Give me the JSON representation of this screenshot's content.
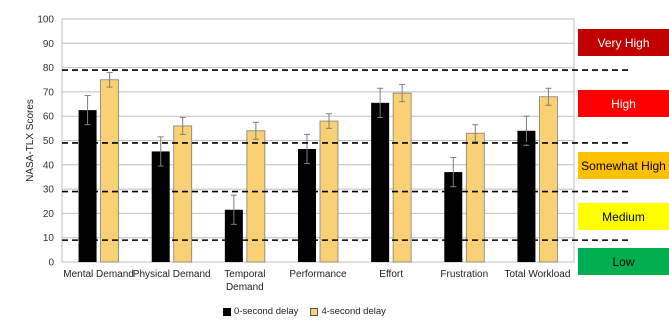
{
  "chart_data": {
    "type": "bar",
    "title": "",
    "xlabel": "",
    "ylabel": "NASA-TLX Scores",
    "ylim": [
      0,
      100
    ],
    "yticks": [
      0,
      10,
      20,
      30,
      40,
      50,
      60,
      70,
      80,
      90,
      100
    ],
    "categories": [
      "Mental Demand",
      "Physical Demand",
      "Temporal Demand",
      "Performance",
      "Effort",
      "Frustration",
      "Total Workload"
    ],
    "series": [
      {
        "name": "0-second delay",
        "color": "#000000",
        "values": [
          62.5,
          45.5,
          21.5,
          46.5,
          65.5,
          37,
          54
        ],
        "errors": [
          6,
          6,
          6,
          6,
          6,
          6,
          6
        ]
      },
      {
        "name": "4-second delay",
        "color": "#f9d174",
        "values": [
          75,
          56,
          54,
          58,
          69.5,
          53,
          68
        ],
        "errors": [
          3,
          3.5,
          3.5,
          3,
          3.5,
          3.5,
          3.5
        ]
      }
    ],
    "thresholds": [
      9,
      29,
      49,
      79
    ],
    "bands": [
      {
        "label": "Very High",
        "bg": "#c00000",
        "fg": "#ffffff"
      },
      {
        "label": "High",
        "bg": "#ff0000",
        "fg": "#ffffff"
      },
      {
        "label": "Somewhat High",
        "bg": "#ffc000",
        "fg": "#000000"
      },
      {
        "label": "Medium",
        "bg": "#ffff00",
        "fg": "#000000"
      },
      {
        "label": "Low",
        "bg": "#00b050",
        "fg": "#000000"
      }
    ],
    "grid": true,
    "legend_position": "bottom"
  }
}
